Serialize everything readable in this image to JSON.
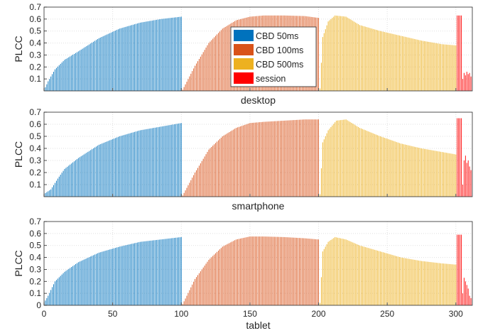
{
  "colors": {
    "series": [
      "#0072BD",
      "#D95319",
      "#EDB120",
      "#FF0000"
    ],
    "axis": "#262626",
    "grid": "#dfdfdf"
  },
  "chart_data": [
    {
      "type": "bar",
      "title": "",
      "xlabel": "desktop",
      "ylabel": "PLCC",
      "xlim": [
        0,
        312
      ],
      "ylim": [
        0,
        0.7
      ],
      "xticks": [],
      "yticks": [
        0.1,
        0.2,
        0.3,
        0.4,
        0.5,
        0.6,
        0.7
      ],
      "grid": true,
      "legend": "top-center",
      "series": [
        {
          "name": "CBD 50ms",
          "x_range": [
            1,
            100
          ],
          "knots": [
            [
              1,
              0.03
            ],
            [
              3,
              0.08
            ],
            [
              8,
              0.18
            ],
            [
              15,
              0.26
            ],
            [
              25,
              0.33
            ],
            [
              40,
              0.44
            ],
            [
              55,
              0.52
            ],
            [
              70,
              0.57
            ],
            [
              85,
              0.6
            ],
            [
              100,
              0.62
            ]
          ]
        },
        {
          "name": "CBD 100ms",
          "x_range": [
            101,
            200
          ],
          "knots": [
            [
              101,
              0.01
            ],
            [
              110,
              0.21
            ],
            [
              120,
              0.4
            ],
            [
              130,
              0.52
            ],
            [
              140,
              0.59
            ],
            [
              150,
              0.62
            ],
            [
              160,
              0.63
            ],
            [
              175,
              0.63
            ],
            [
              190,
              0.625
            ],
            [
              200,
              0.61
            ]
          ]
        },
        {
          "name": "CBD 500ms",
          "x_range": [
            201,
            300
          ],
          "knots": [
            [
              201,
              0.02
            ],
            [
              203,
              0.45
            ],
            [
              207,
              0.58
            ],
            [
              212,
              0.63
            ],
            [
              220,
              0.62
            ],
            [
              230,
              0.55
            ],
            [
              245,
              0.5
            ],
            [
              260,
              0.46
            ],
            [
              275,
              0.42
            ],
            [
              290,
              0.39
            ],
            [
              300,
              0.38
            ]
          ]
        },
        {
          "name": "session",
          "values": [
            0.63,
            0.63,
            0.63,
            0.63,
            0.1,
            0.15,
            0.13,
            0.16,
            0.14,
            0.15,
            0.12
          ]
        }
      ]
    },
    {
      "type": "bar",
      "title": "",
      "xlabel": "smartphone",
      "ylabel": "PLCC",
      "xlim": [
        0,
        312
      ],
      "ylim": [
        0,
        0.7
      ],
      "xticks": [],
      "yticks": [
        0.1,
        0.2,
        0.3,
        0.4,
        0.5,
        0.6,
        0.7
      ],
      "grid": true,
      "legend": "none",
      "series": [
        {
          "name": "CBD 50ms",
          "x_range": [
            1,
            100
          ],
          "knots": [
            [
              1,
              0.03
            ],
            [
              5,
              0.06
            ],
            [
              10,
              0.15
            ],
            [
              15,
              0.23
            ],
            [
              25,
              0.32
            ],
            [
              40,
              0.43
            ],
            [
              55,
              0.5
            ],
            [
              70,
              0.55
            ],
            [
              85,
              0.58
            ],
            [
              100,
              0.61
            ]
          ]
        },
        {
          "name": "CBD 100ms",
          "x_range": [
            101,
            200
          ],
          "knots": [
            [
              101,
              0.01
            ],
            [
              110,
              0.2
            ],
            [
              120,
              0.39
            ],
            [
              130,
              0.5
            ],
            [
              140,
              0.57
            ],
            [
              150,
              0.61
            ],
            [
              160,
              0.62
            ],
            [
              175,
              0.63
            ],
            [
              190,
              0.64
            ],
            [
              200,
              0.64
            ]
          ]
        },
        {
          "name": "CBD 500ms",
          "x_range": [
            201,
            300
          ],
          "knots": [
            [
              201,
              0.02
            ],
            [
              203,
              0.45
            ],
            [
              207,
              0.55
            ],
            [
              213,
              0.63
            ],
            [
              220,
              0.64
            ],
            [
              230,
              0.57
            ],
            [
              245,
              0.5
            ],
            [
              260,
              0.44
            ],
            [
              275,
              0.4
            ],
            [
              290,
              0.37
            ],
            [
              300,
              0.35
            ]
          ]
        },
        {
          "name": "session",
          "values": [
            0.65,
            0.65,
            0.65,
            0.65,
            0.1,
            0.3,
            0.34,
            0.28,
            0.3,
            0.25,
            0.22
          ]
        }
      ]
    },
    {
      "type": "bar",
      "title": "",
      "xlabel": "tablet",
      "ylabel": "PLCC",
      "xlim": [
        0,
        312
      ],
      "ylim": [
        0,
        0.7
      ],
      "xticks": [
        0,
        50,
        100,
        150,
        200,
        250,
        300
      ],
      "yticks": [
        0,
        0.1,
        0.2,
        0.3,
        0.4,
        0.5,
        0.6,
        0.7
      ],
      "grid": true,
      "legend": "none",
      "series": [
        {
          "name": "CBD 50ms",
          "x_range": [
            1,
            100
          ],
          "knots": [
            [
              1,
              0.04
            ],
            [
              3,
              0.08
            ],
            [
              8,
              0.2
            ],
            [
              15,
              0.28
            ],
            [
              25,
              0.36
            ],
            [
              40,
              0.44
            ],
            [
              55,
              0.49
            ],
            [
              70,
              0.53
            ],
            [
              85,
              0.55
            ],
            [
              100,
              0.57
            ]
          ]
        },
        {
          "name": "CBD 100ms",
          "x_range": [
            101,
            200
          ],
          "knots": [
            [
              101,
              0.01
            ],
            [
              110,
              0.22
            ],
            [
              120,
              0.38
            ],
            [
              130,
              0.49
            ],
            [
              140,
              0.55
            ],
            [
              150,
              0.575
            ],
            [
              160,
              0.575
            ],
            [
              175,
              0.57
            ],
            [
              190,
              0.56
            ],
            [
              200,
              0.55
            ]
          ]
        },
        {
          "name": "CBD 500ms",
          "x_range": [
            201,
            300
          ],
          "knots": [
            [
              201,
              0.02
            ],
            [
              203,
              0.45
            ],
            [
              207,
              0.53
            ],
            [
              212,
              0.57
            ],
            [
              220,
              0.55
            ],
            [
              230,
              0.5
            ],
            [
              245,
              0.45
            ],
            [
              260,
              0.4
            ],
            [
              275,
              0.37
            ],
            [
              290,
              0.35
            ],
            [
              300,
              0.34
            ]
          ]
        },
        {
          "name": "session",
          "values": [
            0.59,
            0.59,
            0.59,
            0.59,
            0.1,
            0.23,
            0.2,
            0.17,
            0.14,
            0.08,
            0.06
          ]
        }
      ]
    }
  ]
}
